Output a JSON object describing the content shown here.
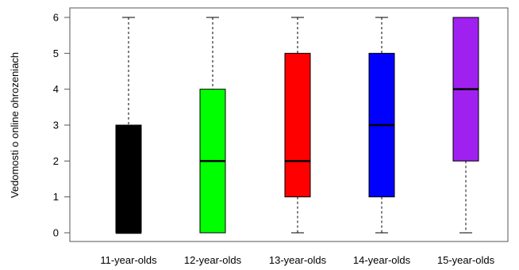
{
  "chart_data": {
    "type": "boxplot",
    "ylabel": "Vedomosti o online ohrozeniach",
    "xlabel": "",
    "ylim": [
      0,
      6
    ],
    "yticks": [
      0,
      1,
      2,
      3,
      4,
      5,
      6
    ],
    "grid": false,
    "categories": [
      "11-year-olds",
      "12-year-olds",
      "13-year-olds",
      "14-year-olds",
      "15-year-olds"
    ],
    "boxes": [
      {
        "category": "11-year-olds",
        "min": 0,
        "q1": 0,
        "median": 0,
        "q3": 3,
        "max": 6,
        "color": "#000000"
      },
      {
        "category": "12-year-olds",
        "min": 0,
        "q1": 0,
        "median": 2,
        "q3": 4,
        "max": 6,
        "color": "#00ff00"
      },
      {
        "category": "13-year-olds",
        "min": 0,
        "q1": 1,
        "median": 2,
        "q3": 5,
        "max": 6,
        "color": "#ff0000"
      },
      {
        "category": "14-year-olds",
        "min": 0,
        "q1": 1,
        "median": 3,
        "q3": 5,
        "max": 6,
        "color": "#0000ff"
      },
      {
        "category": "15-year-olds",
        "min": 0,
        "q1": 2,
        "median": 4,
        "q3": 6,
        "max": 6,
        "color": "#a020f0"
      }
    ]
  }
}
